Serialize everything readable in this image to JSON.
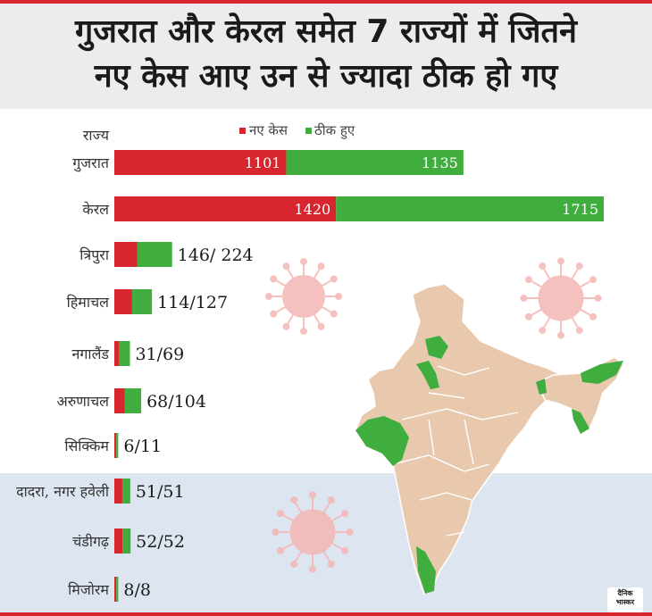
{
  "header": {
    "line1": "गुजरात और केरल समेत 7 राज्यों में जितने",
    "line2": "नए केस आए उन से ज्यादा ठीक हो गए"
  },
  "logo": {
    "line1": "दैनिक",
    "line2": "भास्कर"
  },
  "colors": {
    "new_cases": "#d7262e",
    "recovered": "#3fae3f",
    "accent_rule": "#d7262e",
    "map_fill": "#e8c9ae",
    "virus": "#f4b7b4"
  },
  "icons": [
    "virus-icon",
    "india-map"
  ],
  "chart_data": {
    "type": "bar",
    "orientation": "horizontal",
    "stacked": true,
    "row_header": "राज्य",
    "categories": [
      "गुजरात",
      "केरल",
      "त्रिपुरा",
      "हिमाचल",
      "नगालैंड",
      "अरुणाचल",
      "सिक्किम",
      "दादरा, नगर हवेली",
      "चंडीगढ़",
      "मिजोरम"
    ],
    "series": [
      {
        "name": "नए केस",
        "values": [
          1101,
          1420,
          146,
          114,
          31,
          68,
          6,
          51,
          52,
          8
        ]
      },
      {
        "name": "ठीक हुए",
        "values": [
          1135,
          1715,
          224,
          127,
          69,
          104,
          11,
          51,
          52,
          8
        ]
      }
    ],
    "labels": [
      "",
      "",
      "146/ 224",
      "114/127",
      "31/69",
      "68/104",
      "6/11",
      "51/51",
      "52/52",
      "8/8"
    ],
    "legend_position": "top",
    "grid": false
  }
}
